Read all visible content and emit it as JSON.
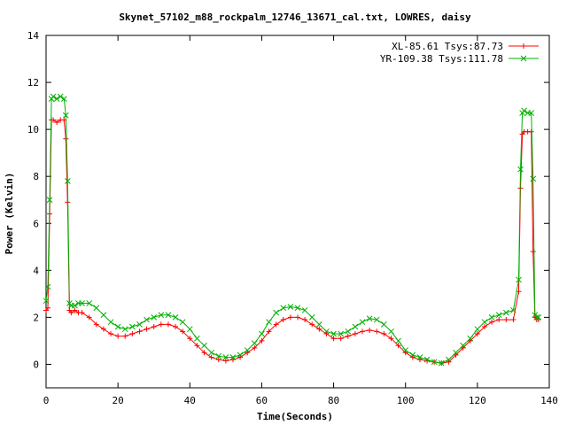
{
  "chart_data": {
    "type": "line",
    "title": "Skynet_57102_m88_rockpalm_12746_13671_cal.txt, LOWRES, daisy",
    "xlabel": "Time(Seconds)",
    "ylabel": "Power (Kelvin)",
    "xlim": [
      0,
      140
    ],
    "ylim": [
      -1,
      14
    ],
    "xticks": [
      0,
      20,
      40,
      60,
      80,
      100,
      120,
      140
    ],
    "yticks": [
      0,
      2,
      4,
      6,
      8,
      10,
      12,
      14
    ],
    "grid": false,
    "legend_position": "top-right",
    "series": [
      {
        "name": "XL-85.61 Tsys:87.73",
        "color": "#ff0000",
        "marker": "plus",
        "x": [
          0,
          0.5,
          1,
          1.5,
          2,
          3,
          4,
          5,
          5.5,
          6,
          6.5,
          7,
          8,
          9,
          10,
          12,
          14,
          16,
          18,
          20,
          22,
          24,
          26,
          28,
          30,
          32,
          34,
          36,
          38,
          40,
          42,
          44,
          46,
          48,
          50,
          52,
          54,
          56,
          58,
          60,
          62,
          64,
          66,
          68,
          70,
          72,
          74,
          76,
          78,
          80,
          82,
          84,
          86,
          88,
          90,
          92,
          94,
          96,
          98,
          100,
          102,
          104,
          106,
          108,
          110,
          112,
          114,
          116,
          118,
          120,
          122,
          124,
          126,
          128,
          130,
          131.5,
          132,
          132.5,
          133,
          134,
          135,
          135.5,
          136,
          136.5,
          137
        ],
        "y": [
          2.3,
          2.4,
          6.4,
          10.4,
          10.4,
          10.3,
          10.4,
          10.4,
          9.6,
          6.9,
          2.3,
          2.2,
          2.3,
          2.2,
          2.2,
          2.0,
          1.7,
          1.5,
          1.3,
          1.2,
          1.2,
          1.3,
          1.4,
          1.5,
          1.6,
          1.7,
          1.7,
          1.6,
          1.4,
          1.1,
          0.8,
          0.5,
          0.3,
          0.2,
          0.15,
          0.2,
          0.3,
          0.5,
          0.7,
          1.0,
          1.4,
          1.7,
          1.9,
          2.0,
          2.0,
          1.9,
          1.7,
          1.5,
          1.3,
          1.1,
          1.1,
          1.2,
          1.3,
          1.4,
          1.45,
          1.4,
          1.3,
          1.1,
          0.8,
          0.5,
          0.3,
          0.2,
          0.15,
          0.1,
          0.05,
          0.1,
          0.4,
          0.7,
          1.0,
          1.3,
          1.6,
          1.8,
          1.9,
          1.9,
          1.9,
          3.1,
          7.5,
          9.8,
          9.9,
          9.9,
          9.9,
          4.8,
          2.0,
          1.9,
          1.9
        ]
      },
      {
        "name": "YR-109.38 Tsys:111.78",
        "color": "#00b000",
        "marker": "cross",
        "x": [
          0,
          0.5,
          1,
          1.5,
          2,
          3,
          4,
          5,
          5.5,
          6,
          6.5,
          7,
          8,
          9,
          10,
          12,
          14,
          16,
          18,
          20,
          22,
          24,
          26,
          28,
          30,
          32,
          34,
          36,
          38,
          40,
          42,
          44,
          46,
          48,
          50,
          52,
          54,
          56,
          58,
          60,
          62,
          64,
          66,
          68,
          70,
          72,
          74,
          76,
          78,
          80,
          82,
          84,
          86,
          88,
          90,
          92,
          94,
          96,
          98,
          100,
          102,
          104,
          106,
          108,
          110,
          112,
          114,
          116,
          118,
          120,
          122,
          124,
          126,
          128,
          130,
          131.5,
          132,
          132.5,
          133,
          134,
          135,
          135.5,
          136,
          136.5,
          137
        ],
        "y": [
          2.7,
          3.3,
          7.0,
          11.3,
          11.4,
          11.3,
          11.4,
          11.3,
          10.6,
          7.8,
          2.6,
          2.5,
          2.5,
          2.6,
          2.6,
          2.6,
          2.4,
          2.1,
          1.8,
          1.6,
          1.5,
          1.6,
          1.7,
          1.9,
          2.0,
          2.1,
          2.1,
          2.0,
          1.8,
          1.5,
          1.1,
          0.8,
          0.5,
          0.35,
          0.3,
          0.3,
          0.4,
          0.6,
          0.9,
          1.3,
          1.8,
          2.2,
          2.4,
          2.45,
          2.4,
          2.3,
          2.0,
          1.7,
          1.4,
          1.3,
          1.3,
          1.4,
          1.6,
          1.8,
          1.95,
          1.9,
          1.7,
          1.4,
          1.0,
          0.6,
          0.4,
          0.3,
          0.2,
          0.1,
          0.05,
          0.2,
          0.5,
          0.8,
          1.1,
          1.5,
          1.8,
          2.0,
          2.1,
          2.2,
          2.3,
          3.6,
          8.3,
          10.7,
          10.8,
          10.7,
          10.7,
          7.9,
          2.1,
          2.0,
          2.0
        ]
      }
    ]
  }
}
